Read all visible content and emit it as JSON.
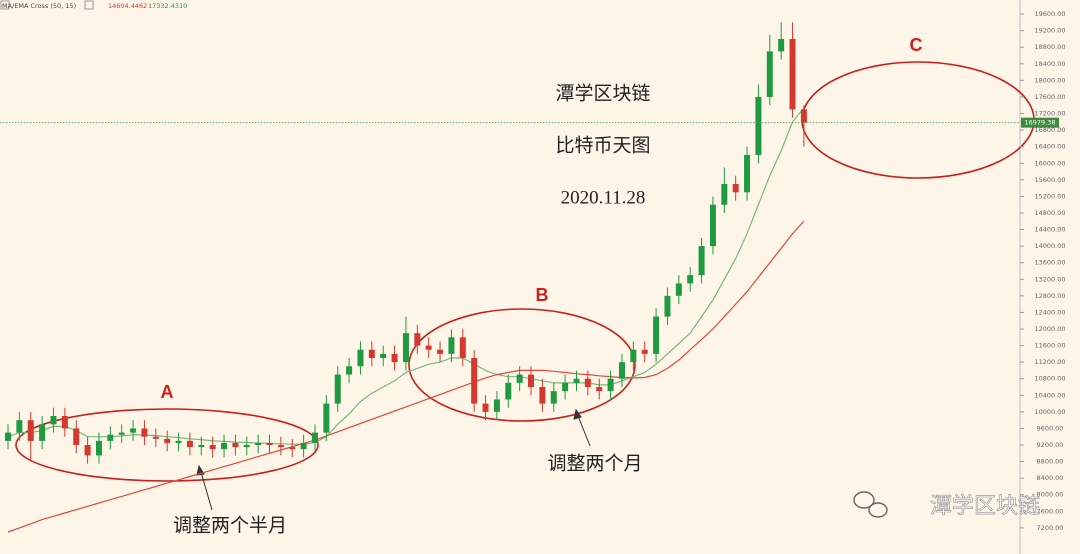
{
  "chart_data": {
    "type": "candlestick",
    "indicator": "MA/EMA Cross (50, 15)",
    "indicator_values": [
      14604.4462,
      {
        "value": 17332.431,
        "label": "17332.4310"
      }
    ],
    "annotations": [
      "潭学区块链",
      "比特币天图",
      "2020.11.28",
      "A",
      "B",
      "C",
      "调整两个半月",
      "调整两个月"
    ],
    "watermark": "潭学区块链",
    "up_color": "#1f9a40",
    "down_color": "#d33a2f",
    "open": [
      9300,
      9500,
      9800,
      9300,
      9700,
      9900,
      9600,
      9200,
      8950,
      9300,
      9450,
      9500,
      9600,
      9400,
      9350,
      9250,
      9300,
      9150,
      9200,
      9100,
      9250,
      9150,
      9200,
      9250,
      9200,
      9150,
      9100,
      9250,
      9500,
      10200,
      10900,
      11100,
      11500,
      11300,
      11400,
      11200,
      11900,
      11600,
      11500,
      11400,
      11800,
      11300,
      10200,
      10000,
      10300,
      10700,
      10900,
      10600,
      10200,
      10500,
      10700,
      10800,
      10600,
      10500,
      10800,
      11200,
      11500,
      11400,
      12300,
      12800,
      13100,
      13300,
      14000,
      15000,
      15500,
      15300,
      16200,
      17600,
      18700,
      19000,
      17300
    ],
    "high": [
      9700,
      10000,
      10000,
      9900,
      10100,
      10100,
      9800,
      9400,
      9500,
      9650,
      9700,
      9800,
      9800,
      9600,
      9550,
      9500,
      9500,
      9400,
      9400,
      9450,
      9450,
      9400,
      9450,
      9450,
      9400,
      9350,
      9450,
      9700,
      10400,
      11100,
      11300,
      11700,
      11700,
      11600,
      11600,
      12300,
      12100,
      11800,
      11700,
      12000,
      12000,
      11500,
      10400,
      10500,
      10900,
      11100,
      11100,
      10800,
      10700,
      10900,
      11000,
      11000,
      10800,
      11000,
      11400,
      11700,
      11700,
      12500,
      13000,
      13300,
      13500,
      14200,
      15200,
      15900,
      15700,
      16400,
      17900,
      19100,
      19400,
      19400,
      17400
    ],
    "low": [
      9100,
      9300,
      8800,
      9100,
      9500,
      9400,
      9000,
      8750,
      8750,
      9100,
      9250,
      9300,
      9200,
      9150,
      9050,
      9050,
      8950,
      8950,
      8900,
      8900,
      8950,
      8950,
      9000,
      9000,
      8950,
      8900,
      8900,
      9050,
      9300,
      10000,
      10700,
      10900,
      11100,
      11100,
      11000,
      11000,
      11400,
      11300,
      11200,
      11200,
      11100,
      10000,
      9800,
      9800,
      10100,
      10500,
      10400,
      10000,
      10000,
      10300,
      10500,
      10400,
      10300,
      10300,
      10600,
      11000,
      11200,
      11200,
      12100,
      12600,
      12900,
      13100,
      13800,
      14800,
      15100,
      15100,
      16000,
      17400,
      18500,
      17100,
      16400
    ],
    "close": [
      9500,
      9800,
      9300,
      9700,
      9900,
      9600,
      9200,
      8950,
      9300,
      9450,
      9500,
      9600,
      9400,
      9350,
      9250,
      9300,
      9150,
      9200,
      9100,
      9250,
      9150,
      9200,
      9250,
      9200,
      9150,
      9100,
      9250,
      9500,
      10200,
      10900,
      11100,
      11500,
      11300,
      11400,
      11200,
      11900,
      11600,
      11500,
      11400,
      11800,
      11300,
      10200,
      10000,
      10300,
      10700,
      10900,
      10600,
      10200,
      10500,
      10700,
      10800,
      10600,
      10500,
      10800,
      11200,
      11500,
      11400,
      12300,
      12800,
      13100,
      13300,
      14000,
      15000,
      15500,
      15300,
      16200,
      17600,
      18700,
      19000,
      17300,
      16979.38
    ],
    "lines": [
      {
        "color": "#7ab87a",
        "values": [
          9400,
          9500,
          9500,
          9550,
          9650,
          9650,
          9550,
          9400,
          9400,
          9400,
          9420,
          9450,
          9440,
          9430,
          9400,
          9380,
          9350,
          9330,
          9300,
          9290,
          9270,
          9260,
          9250,
          9240,
          9230,
          9220,
          9220,
          9260,
          9400,
          9700,
          9950,
          10250,
          10450,
          10600,
          10750,
          10950,
          11050,
          11150,
          11200,
          11300,
          11300,
          11150,
          11000,
          10900,
          10850,
          10850,
          10800,
          10750,
          10700,
          10700,
          10700,
          10700,
          10650,
          10650,
          10750,
          10850,
          10950,
          11150,
          11400,
          11650,
          11900,
          12300,
          12700,
          13200,
          13700,
          14300,
          15000,
          15700,
          16300,
          17000,
          17332.431
        ]
      },
      {
        "color": "#e2483c",
        "values": [
          7100,
          7200,
          7300,
          7400,
          7480,
          7560,
          7640,
          7720,
          7800,
          7880,
          7960,
          8040,
          8120,
          8200,
          8280,
          8360,
          8440,
          8520,
          8600,
          8680,
          8760,
          8840,
          8920,
          9000,
          9080,
          9160,
          9240,
          9320,
          9420,
          9520,
          9620,
          9720,
          9820,
          9920,
          10020,
          10120,
          10220,
          10320,
          10420,
          10520,
          10620,
          10720,
          10820,
          10900,
          10950,
          11000,
          11000,
          11000,
          10980,
          10950,
          10920,
          10900,
          10870,
          10850,
          10830,
          10820,
          10830,
          10900,
          11050,
          11250,
          11500,
          11750,
          12000,
          12300,
          12600,
          12900,
          13250,
          13600,
          13950,
          14300,
          14604.4462
        ]
      }
    ],
    "last_price": {
      "value": 16979.38,
      "label": "16979.38"
    },
    "ylim": [
      6570,
      19940
    ],
    "yticks": [
      {
        "value": 7200,
        "label": "7200.00"
      },
      {
        "value": 7600,
        "label": "7600.00"
      },
      {
        "value": 8000,
        "label": "8000.00"
      },
      {
        "value": 8400,
        "label": "8400.00"
      },
      {
        "value": 8800,
        "label": "8800.00"
      },
      {
        "value": 9200,
        "label": "9200.00"
      },
      {
        "value": 9600,
        "label": "9600.00"
      },
      {
        "value": 10000,
        "label": "10000.00"
      },
      {
        "value": 10400,
        "label": "10400.00"
      },
      {
        "value": 10800,
        "label": "10800.00"
      },
      {
        "value": 11200,
        "label": "11200.00"
      },
      {
        "value": 11600,
        "label": "11600.00"
      },
      {
        "value": 12000,
        "label": "12000.00"
      },
      {
        "value": 12400,
        "label": "12400.00"
      },
      {
        "value": 12800,
        "label": "12800.00"
      },
      {
        "value": 13200,
        "label": "13200.00"
      },
      {
        "value": 13600,
        "label": "13600.00"
      },
      {
        "value": 14000,
        "label": "14000.00"
      },
      {
        "value": 14400,
        "label": "14400.00"
      },
      {
        "value": 14800,
        "label": "14800.00"
      },
      {
        "value": 15200,
        "label": "15200.00"
      },
      {
        "value": 15600,
        "label": "15600.00"
      },
      {
        "value": 16000,
        "label": "16000.00"
      },
      {
        "value": 16400,
        "label": "16400.00"
      },
      {
        "value": 16800,
        "label": "16800.00"
      },
      {
        "value": 17200,
        "label": "17200.00"
      },
      {
        "value": 17600,
        "label": "17600.00"
      },
      {
        "value": 18000,
        "label": "18000.00"
      },
      {
        "value": 18400,
        "label": "18400.00"
      },
      {
        "value": 18800,
        "label": "18800.00"
      },
      {
        "value": 19200,
        "label": "19200.00"
      },
      {
        "value": 19600,
        "label": "19600.00"
      }
    ]
  }
}
